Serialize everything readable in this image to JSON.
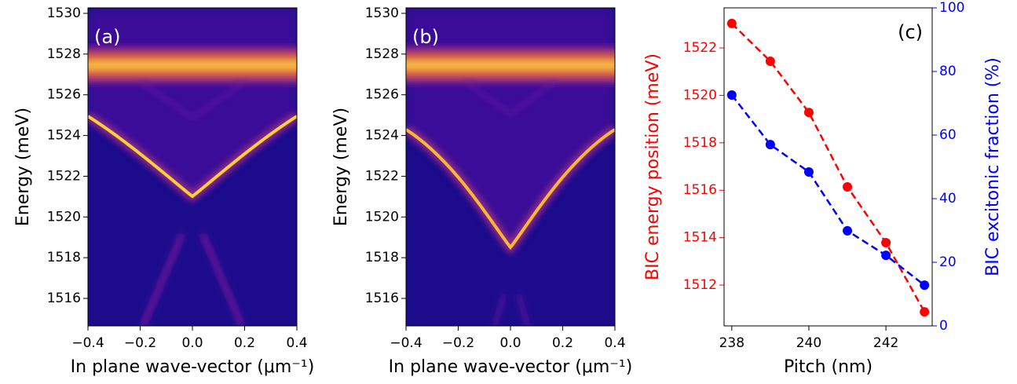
{
  "chart_data": [
    {
      "type": "heatmap",
      "panel_label": "(a)",
      "x_label": "In plane wave-vector (μm⁻¹)",
      "y_label": "Energy (meV)",
      "xlim": [
        -0.4,
        0.4
      ],
      "xticks": [
        {
          "value": -0.4,
          "label": "−0.4"
        },
        {
          "value": -0.2,
          "label": "−0.2"
        },
        {
          "value": 0,
          "label": "0.0"
        },
        {
          "value": 0.2,
          "label": "0.2"
        },
        {
          "value": 0.4,
          "label": "0.4"
        }
      ],
      "ylim": [
        1514.65,
        1530.27
      ],
      "yticks": [
        1516,
        1518,
        1520,
        1522,
        1524,
        1526,
        1528,
        1530
      ]
    },
    {
      "type": "heatmap",
      "panel_label": "(b)",
      "x_label": "In plane wave-vector (μm⁻¹)",
      "y_label": "Energy (meV)",
      "xlim": [
        -0.4,
        0.4
      ],
      "xticks": [
        {
          "value": -0.4,
          "label": "−0.4"
        },
        {
          "value": -0.2,
          "label": "−0.2"
        },
        {
          "value": 0,
          "label": "0.0"
        },
        {
          "value": 0.2,
          "label": "0.2"
        },
        {
          "value": 0.4,
          "label": "0.4"
        }
      ],
      "ylim": [
        1514.65,
        1530.27
      ],
      "yticks": [
        1516,
        1518,
        1520,
        1522,
        1524,
        1526,
        1528,
        1530
      ]
    },
    {
      "type": "line",
      "panel_label": "(c)",
      "x_label": "Pitch (nm)",
      "y_label": "BIC energy position (meV)",
      "y2_label": "BIC excitonic fraction (%)",
      "x": [
        238,
        239,
        240,
        241,
        242,
        243
      ],
      "xlim": [
        237.8,
        243.2
      ],
      "xticks": [
        238,
        240,
        242
      ],
      "ylim": [
        1510.28,
        1523.69
      ],
      "yticks": [
        1512,
        1514,
        1516,
        1518,
        1520,
        1522
      ],
      "y2lim": [
        0,
        100
      ],
      "y2ticks": [
        0,
        20,
        40,
        60,
        80,
        100
      ],
      "series": [
        {
          "color": "#ff0000",
          "axis": "y",
          "values": [
            1523.03,
            1521.44,
            1519.28,
            1516.14,
            1513.79,
            1510.87
          ]
        },
        {
          "color": "#0000ff",
          "axis": "y2",
          "values": [
            72.6,
            57.0,
            48.4,
            29.9,
            22.2,
            12.8
          ]
        }
      ]
    }
  ]
}
